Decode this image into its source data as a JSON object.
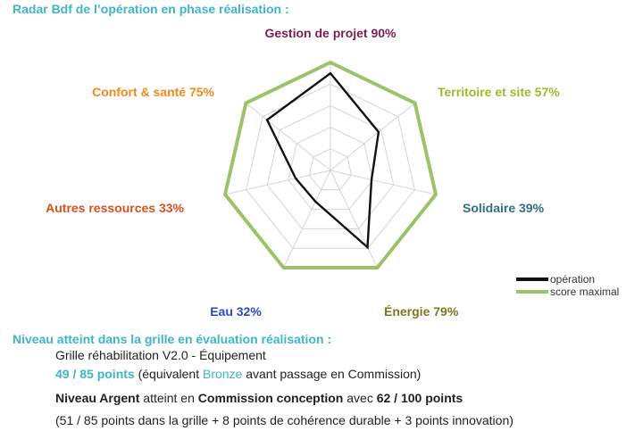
{
  "title": "Radar Bdf de l’opération en phase réalisation :",
  "chart_data": {
    "type": "radar",
    "ylim": [
      0,
      100
    ],
    "grid_levels": [
      20,
      40,
      60,
      80,
      100
    ],
    "categories": [
      "Gestion de projet",
      "Territoire et site",
      "Solidaire",
      "Énergie",
      "Eau",
      "Autres ressources",
      "Confort & santé"
    ],
    "category_labels": [
      "Gestion de projet 90%",
      "Territoire et site 57%",
      "Solidaire 39%",
      "Énergie 79%",
      "Eau 32%",
      "Autres ressources 33%",
      "Confort & santé 75%"
    ],
    "category_colors": [
      "#7b1e4e",
      "#9bbb2c",
      "#2f6f86",
      "#7a7a1e",
      "#2b48c8",
      "#d9521c",
      "#f08a1c"
    ],
    "series": [
      {
        "name": "opération",
        "color": "#111111",
        "values": [
          90,
          57,
          39,
          79,
          32,
          33,
          75
        ]
      },
      {
        "name": "score maximal",
        "color": "#9dc26a",
        "values": [
          100,
          100,
          100,
          100,
          100,
          100,
          100
        ]
      }
    ]
  },
  "section2_title": "Niveau atteint dans la grille en évaluation réalisation :",
  "grid_label": "Grille réhabilitation V2.0 - Équipement",
  "points_text": "49 / 85 points",
  "equiv_prefix": "(équivalent ",
  "equiv_level": "Bronze",
  "equiv_suffix": " avant passage en Commission)",
  "niveau_prefix": "Niveau Argent",
  "niveau_middle": " atteint en ",
  "niveau_commission": "Commission conception",
  "niveau_avec": " avec ",
  "niveau_points": "62 / 100 points",
  "breakdown": "(51 / 85 points dans la grille + 8 points de cohérence durable + 3 points innovation)"
}
